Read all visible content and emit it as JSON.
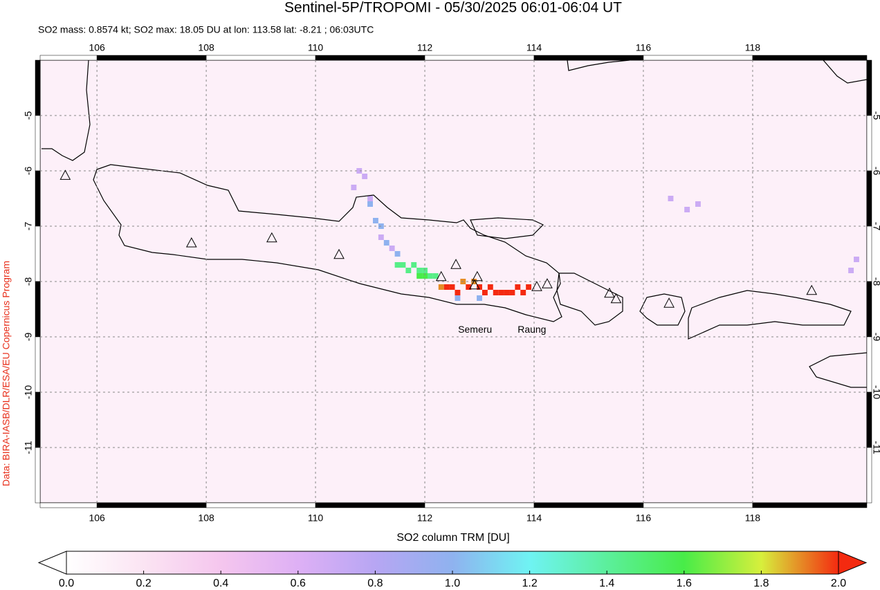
{
  "title": "Sentinel-5P/TROPOMI - 05/30/2025 06:01-06:04 UT",
  "subtitle": "SO2 mass: 0.8574 kt; SO2 max: 18.05 DU at lon: 113.58 lat: -8.21 ; 06:03UTC",
  "credit": "Data: BIRA-IASB/DLR/ESA/EU Copernicus Program",
  "map": {
    "xlim": [
      104.96,
      120.09
    ],
    "ylim": [
      -12,
      -4
    ],
    "xticks": [
      106,
      108,
      110,
      112,
      114,
      116,
      118
    ],
    "yticks": [
      -5,
      -6,
      -7,
      -8,
      -9,
      -10,
      -11
    ],
    "grid": true,
    "volcanoes": [
      [
        105.42,
        -6.08
      ],
      [
        107.73,
        -7.3
      ],
      [
        109.2,
        -7.21
      ],
      [
        110.43,
        -7.51
      ],
      [
        112.3,
        -7.91
      ],
      [
        112.57,
        -7.69
      ],
      [
        112.96,
        -7.91
      ],
      [
        112.91,
        -8.06
      ],
      [
        114.05,
        -8.09
      ],
      [
        114.24,
        -8.04
      ],
      [
        115.38,
        -8.21
      ],
      [
        115.5,
        -8.31
      ],
      [
        116.47,
        -8.39
      ],
      [
        119.08,
        -8.16
      ]
    ],
    "labels": [
      {
        "text": "Semeru",
        "lon": 112.92,
        "lat": -8.88
      },
      {
        "text": "Raung",
        "lon": 113.96,
        "lat": -8.88
      }
    ]
  },
  "plume": {
    "cells": [
      [
        112.4,
        -8.1,
        2.3
      ],
      [
        112.5,
        -8.1,
        2.3
      ],
      [
        112.6,
        -8.2,
        2.3
      ],
      [
        112.8,
        -8.1,
        2.3
      ],
      [
        113.0,
        -8.1,
        2.3
      ],
      [
        113.1,
        -8.2,
        2.3
      ],
      [
        113.2,
        -8.1,
        2.3
      ],
      [
        113.3,
        -8.2,
        2.3
      ],
      [
        113.4,
        -8.2,
        2.3
      ],
      [
        113.5,
        -8.2,
        2.3
      ],
      [
        113.6,
        -8.2,
        2.3
      ],
      [
        113.7,
        -8.1,
        2.3
      ],
      [
        113.8,
        -8.2,
        2.3
      ],
      [
        113.9,
        -8.1,
        2.3
      ],
      [
        112.7,
        -8.0,
        1.9
      ],
      [
        112.9,
        -8.0,
        1.9
      ],
      [
        112.3,
        -8.1,
        1.9
      ],
      [
        111.5,
        -7.7,
        1.45
      ],
      [
        111.6,
        -7.7,
        1.45
      ],
      [
        111.7,
        -7.8,
        1.45
      ],
      [
        111.8,
        -7.7,
        1.45
      ],
      [
        111.9,
        -7.8,
        1.45
      ],
      [
        112.0,
        -7.8,
        1.45
      ],
      [
        112.1,
        -7.9,
        1.45
      ],
      [
        112.2,
        -7.9,
        1.45
      ],
      [
        111.9,
        -7.9,
        1.6
      ],
      [
        112.0,
        -7.9,
        1.6
      ],
      [
        111.1,
        -6.9,
        1.0
      ],
      [
        111.2,
        -7.0,
        1.0
      ],
      [
        111.0,
        -6.6,
        1.0
      ],
      [
        111.3,
        -7.3,
        1.0
      ],
      [
        111.5,
        -7.5,
        1.0
      ],
      [
        112.6,
        -8.3,
        1.0
      ],
      [
        113.0,
        -8.3,
        1.0
      ],
      [
        110.8,
        -6.0,
        0.7
      ],
      [
        110.9,
        -6.1,
        0.7
      ],
      [
        110.7,
        -6.3,
        0.7
      ],
      [
        111.0,
        -6.5,
        0.7
      ],
      [
        111.4,
        -7.4,
        0.7
      ],
      [
        111.2,
        -7.2,
        0.7
      ],
      [
        116.5,
        -6.5,
        0.7
      ],
      [
        116.8,
        -6.7,
        0.7
      ],
      [
        117.0,
        -6.6,
        0.7
      ],
      [
        119.9,
        -7.6,
        0.7
      ],
      [
        119.8,
        -7.8,
        0.7
      ]
    ]
  },
  "colorbar": {
    "label": "SO2 column TRM [DU]",
    "lim": [
      0,
      2
    ],
    "ticks": [
      {
        "value": 0,
        "label": "0.0"
      },
      {
        "value": 0.2,
        "label": "0.2"
      },
      {
        "value": 0.4,
        "label": "0.4"
      },
      {
        "value": 0.6,
        "label": "0.6"
      },
      {
        "value": 0.8,
        "label": "0.8"
      },
      {
        "value": 1,
        "label": "1.0"
      },
      {
        "value": 1.2,
        "label": "1.2"
      },
      {
        "value": 1.4,
        "label": "1.4"
      },
      {
        "value": 1.6,
        "label": "1.6"
      },
      {
        "value": 1.8,
        "label": "1.8"
      },
      {
        "value": 2,
        "label": "2.0"
      }
    ],
    "colors": [
      "#ffffff",
      "#fbe4f3",
      "#f5c6ee",
      "#deb0f5",
      "#b7a6f3",
      "#8fb2ef",
      "#6ff3f3",
      "#5cef9c",
      "#48ec48",
      "#d7ef3c",
      "#f42a10"
    ],
    "under_color": "#ffffff",
    "over_color": "#f42a10"
  }
}
